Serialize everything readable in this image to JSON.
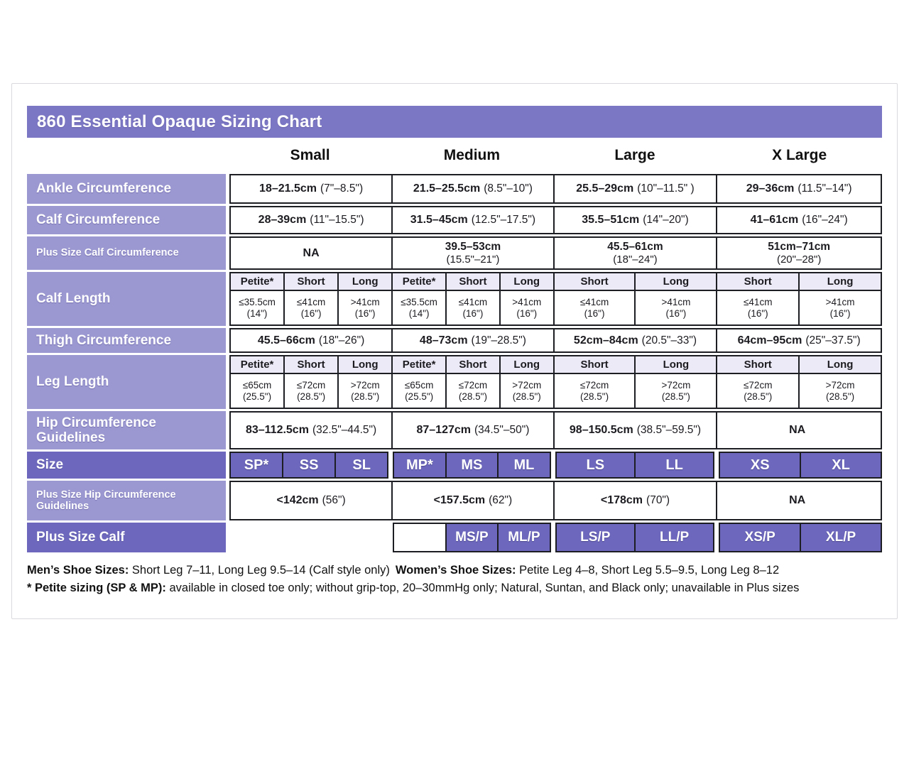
{
  "page": {
    "title": "860 Essential Opaque Sizing Chart"
  },
  "columns": [
    "Small",
    "Medium",
    "Large",
    "X Large"
  ],
  "colors": {
    "banner": "#7C77C4",
    "row_label": "#9B97D1",
    "dark_purple": "#6D68BD",
    "subheader_bg": "#ECEAF6",
    "border": "#1D1D24"
  },
  "rows": {
    "ankle": {
      "label": "Ankle Circumference",
      "values": [
        {
          "cm": "18–21.5cm",
          "in": "(7\"–8.5\")"
        },
        {
          "cm": "21.5–25.5cm",
          "in": "(8.5\"–10\")"
        },
        {
          "cm": "25.5–29cm",
          "in": "(10\"–11.5\" )"
        },
        {
          "cm": "29–36cm",
          "in": "(11.5\"–14\")"
        }
      ]
    },
    "calf": {
      "label": "Calf Circumference",
      "values": [
        {
          "cm": "28–39cm",
          "in": "(11\"–15.5\")"
        },
        {
          "cm": "31.5–45cm",
          "in": "(12.5\"–17.5\")"
        },
        {
          "cm": "35.5–51cm",
          "in": "(14\"–20\")"
        },
        {
          "cm": "41–61cm",
          "in": "(16\"–24\")"
        }
      ]
    },
    "plus_calf_circ": {
      "label": "Plus Size Calf Circumference",
      "values": [
        {
          "cm": "NA",
          "in": ""
        },
        {
          "cm": "39.5–53cm",
          "in": "(15.5\"–21\")"
        },
        {
          "cm": "45.5–61cm",
          "in": "(18\"–24\")"
        },
        {
          "cm": "51cm–71cm",
          "in": "(20\"–28\")"
        }
      ]
    },
    "calf_length": {
      "label": "Calf Length",
      "subheaders": [
        "Petite*",
        "Short",
        "Long",
        "Petite*",
        "Short",
        "Long",
        "Short",
        "Long",
        "Short",
        "Long"
      ],
      "values": [
        {
          "cm": "≤35.5cm",
          "in": "(14\")"
        },
        {
          "cm": "≤41cm",
          "in": "(16\")"
        },
        {
          "cm": ">41cm",
          "in": "(16\")"
        },
        {
          "cm": "≤35.5cm",
          "in": "(14\")"
        },
        {
          "cm": "≤41cm",
          "in": "(16\")"
        },
        {
          "cm": ">41cm",
          "in": "(16\")"
        },
        {
          "cm": "≤41cm",
          "in": "(16\")"
        },
        {
          "cm": ">41cm",
          "in": "(16\")"
        },
        {
          "cm": "≤41cm",
          "in": "(16\")"
        },
        {
          "cm": ">41cm",
          "in": "(16\")"
        }
      ]
    },
    "thigh": {
      "label": "Thigh Circumference",
      "values": [
        {
          "cm": "45.5–66cm",
          "in": "(18\"–26\")"
        },
        {
          "cm": "48–73cm",
          "in": "(19\"–28.5\")"
        },
        {
          "cm": "52cm–84cm",
          "in": "(20.5\"–33\")"
        },
        {
          "cm": "64cm–95cm",
          "in": "(25\"–37.5\")"
        }
      ]
    },
    "leg_length": {
      "label": "Leg Length",
      "subheaders": [
        "Petite*",
        "Short",
        "Long",
        "Petite*",
        "Short",
        "Long",
        "Short",
        "Long",
        "Short",
        "Long"
      ],
      "values": [
        {
          "cm": "≤65cm",
          "in": "(25.5\")"
        },
        {
          "cm": "≤72cm",
          "in": "(28.5\")"
        },
        {
          "cm": ">72cm",
          "in": "(28.5\")"
        },
        {
          "cm": "≤65cm",
          "in": "(25.5\")"
        },
        {
          "cm": "≤72cm",
          "in": "(28.5\")"
        },
        {
          "cm": ">72cm",
          "in": "(28.5\")"
        },
        {
          "cm": "≤72cm",
          "in": "(28.5\")"
        },
        {
          "cm": ">72cm",
          "in": "(28.5\")"
        },
        {
          "cm": "≤72cm",
          "in": "(28.5\")"
        },
        {
          "cm": ">72cm",
          "in": "(28.5\")"
        }
      ]
    },
    "hip": {
      "label": "Hip Circumference Guidelines",
      "values": [
        {
          "cm": "83–112.5cm",
          "in": "(32.5\"–44.5\")"
        },
        {
          "cm": "87–127cm",
          "in": "(34.5\"–50\")"
        },
        {
          "cm": "98–150.5cm",
          "in": "(38.5\"–59.5\")"
        },
        {
          "cm": "NA",
          "in": ""
        }
      ]
    },
    "size": {
      "label": "Size",
      "values": [
        "SP*",
        "SS",
        "SL",
        "MP*",
        "MS",
        "ML",
        "LS",
        "LL",
        "XS",
        "XL"
      ]
    },
    "plus_hip": {
      "label": "Plus Size Hip Circumference Guidelines",
      "values": [
        {
          "cm": "<142cm",
          "in": "(56\")"
        },
        {
          "cm": "<157.5cm",
          "in": "(62\")"
        },
        {
          "cm": "<178cm",
          "in": "(70\")"
        },
        {
          "cm": "NA",
          "in": ""
        }
      ]
    },
    "plus_calf": {
      "label": "Plus Size Calf",
      "values": [
        "MS/P",
        "ML/P",
        "LS/P",
        "LL/P",
        "XS/P",
        "XL/P"
      ]
    }
  },
  "footnotes": {
    "line1_bold1": "Men’s Shoe Sizes:",
    "line1_text1": " Short Leg 7–11, Long Leg 9.5–14 (Calf style only)",
    "line1_bold2": "Women’s Shoe Sizes:",
    "line1_text2": " Petite Leg 4–8,  Short Leg 5.5–9.5, Long Leg 8–12",
    "line2_bold": "* Petite sizing (SP & MP):",
    "line2_text": " available in closed toe only; without grip-top, 20–30mmHg only; Natural, Suntan, and Black only; unavailable in Plus sizes"
  }
}
